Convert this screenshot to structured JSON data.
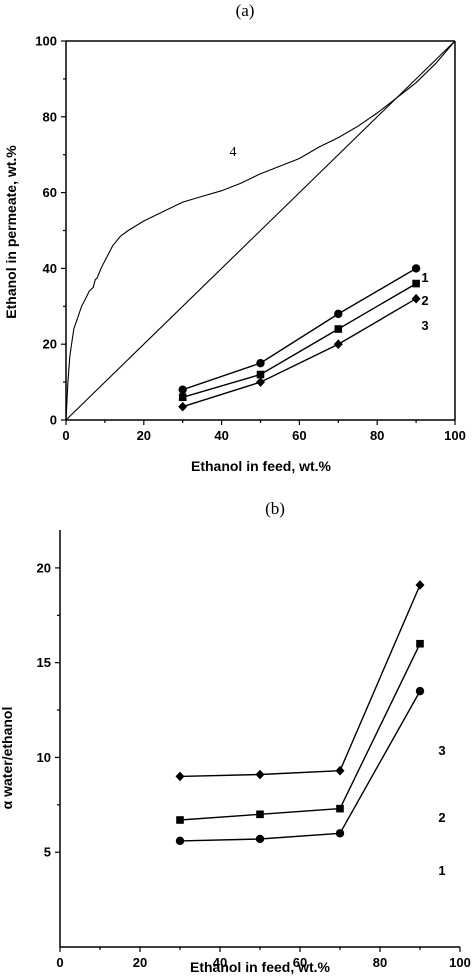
{
  "chart_data": [
    {
      "panel_label": "(a)",
      "type": "line",
      "xlabel": "Ethanol in feed, wt.%",
      "ylabel": "Ethanol in permeate, wt.%",
      "xlim": [
        0,
        100
      ],
      "ylim": [
        0,
        100
      ],
      "xticks": [
        "0",
        "20",
        "40",
        "60",
        "80",
        "100"
      ],
      "yticks": [
        "0",
        "20",
        "40",
        "60",
        "80",
        "100"
      ],
      "series": [
        {
          "name": "1",
          "marker": "circle",
          "x": [
            30,
            50,
            70,
            90
          ],
          "y": [
            8,
            15,
            28,
            40
          ]
        },
        {
          "name": "2",
          "marker": "square",
          "x": [
            30,
            50,
            70,
            90
          ],
          "y": [
            6,
            12,
            24,
            36
          ]
        },
        {
          "name": "3",
          "marker": "diamond",
          "x": [
            30,
            50,
            70,
            90
          ],
          "y": [
            3.5,
            10,
            20,
            32
          ]
        },
        {
          "name": "4",
          "marker": "none",
          "x": [
            0,
            0.5,
            1,
            2,
            3,
            4,
            5,
            6,
            7,
            7.5,
            8,
            9,
            10,
            12,
            14,
            16,
            20,
            25,
            30,
            35,
            40,
            45,
            50,
            55,
            60,
            65,
            70,
            75,
            80,
            85,
            90,
            95,
            100
          ],
          "y": [
            0,
            10,
            17,
            24,
            27,
            30,
            32,
            34,
            35,
            37,
            37.5,
            40,
            42,
            46,
            48.5,
            50,
            52.5,
            55,
            57.5,
            59,
            60.5,
            62.5,
            65,
            67,
            69,
            72,
            74.5,
            77.5,
            81,
            85,
            89,
            94,
            100
          ]
        },
        {
          "name": "",
          "marker": "none",
          "x": [
            0,
            100
          ],
          "y": [
            0,
            100
          ]
        }
      ]
    },
    {
      "panel_label": "(b)",
      "type": "line",
      "xlabel": "Ethanol in feed, wt.%",
      "ylabel": "α water/ethanol",
      "xlim": [
        0,
        100
      ],
      "ylim": [
        0,
        22
      ],
      "xticks": [
        "0",
        "20",
        "40",
        "60",
        "80",
        "100"
      ],
      "yticks": [
        "5",
        "10",
        "15",
        "20"
      ],
      "series": [
        {
          "name": "1",
          "marker": "circle",
          "x": [
            30,
            50,
            70,
            90
          ],
          "y": [
            5.6,
            5.7,
            6.0,
            13.5
          ]
        },
        {
          "name": "2",
          "marker": "square",
          "x": [
            30,
            50,
            70,
            90
          ],
          "y": [
            6.7,
            7.0,
            7.3,
            16.0
          ]
        },
        {
          "name": "3",
          "marker": "diamond",
          "x": [
            30,
            50,
            70,
            90
          ],
          "y": [
            9.0,
            9.1,
            9.3,
            19.1
          ]
        }
      ]
    }
  ]
}
